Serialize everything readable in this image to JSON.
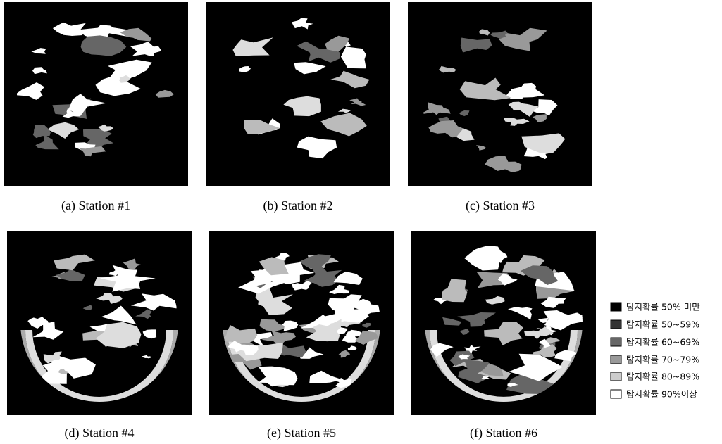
{
  "panels": [
    {
      "caption": "(a)  Station  #1"
    },
    {
      "caption": "(b)  Station  #2"
    },
    {
      "caption": "(c)  Station  #3"
    },
    {
      "caption": "(d)  Station  #4"
    },
    {
      "caption": "(e)  Station  #5"
    },
    {
      "caption": "(f)  Station  #6"
    }
  ],
  "legend": [
    {
      "label": "탐지확률 50% 미만"
    },
    {
      "label": "탐지확률 50~59%"
    },
    {
      "label": "탐지확률 60~69%"
    },
    {
      "label": "탐지확률 70~79%"
    },
    {
      "label": "탐지확률 80~89%"
    },
    {
      "label": "탐지확률 90%이상"
    }
  ]
}
